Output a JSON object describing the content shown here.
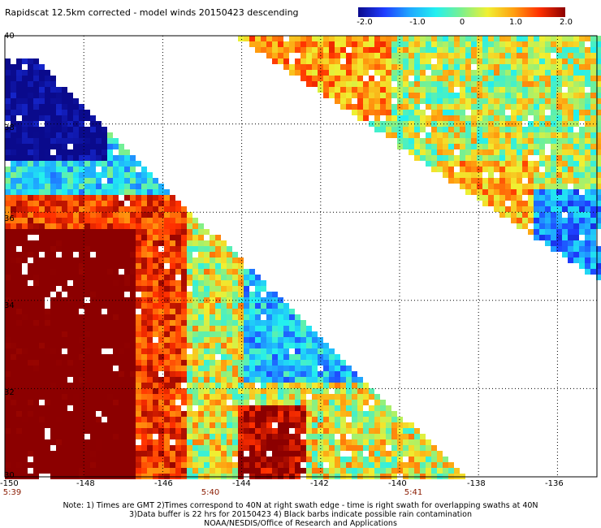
{
  "title": "Rapidscat 12.5km corrected - model winds 20150423 descending",
  "colorbar": {
    "min": -2.0,
    "max": 2.0,
    "tick_labels": [
      "-2.0",
      "-1.0",
      "0",
      "1.0",
      "2.0"
    ],
    "tick_values": [
      -2.0,
      -1.0,
      0.0,
      1.0,
      2.0
    ],
    "colors": [
      "#0a0a8c",
      "#1e3cff",
      "#1fa8ff",
      "#22f0f0",
      "#7cf08c",
      "#f0f032",
      "#ffa010",
      "#ff3000",
      "#8c0000"
    ]
  },
  "axes": {
    "lon_min": -150,
    "lon_max": -135,
    "lat_min": 30,
    "lat_max": 40,
    "x_tick_labels": [
      "-150",
      "-148",
      "-146",
      "-144",
      "-142",
      "-140",
      "-138",
      "-136"
    ],
    "x_tick_values": [
      -150,
      -148,
      -146,
      -144,
      -142,
      -140,
      -138,
      -136
    ],
    "y_tick_labels": [
      "40",
      "38",
      "36",
      "34",
      "32",
      "30"
    ],
    "y_tick_values": [
      40,
      38,
      36,
      34,
      32,
      30
    ]
  },
  "times": [
    {
      "label": "5:39",
      "lon": -150
    },
    {
      "label": "5:40",
      "lon": -145.5
    },
    {
      "label": "5:41",
      "lon": -140.6
    }
  ],
  "notes": {
    "line1": "Note: 1) Times are GMT 2)Times correspond to 40N at right swath edge - time is right swath for overlapping swaths at 40N",
    "line2": "3)Data buffer is 22 hrs for 20150423 4) Black barbs indicate possible rain contamination",
    "line3": "NOAA/NESDIS/Office of Research and Applications"
  }
}
